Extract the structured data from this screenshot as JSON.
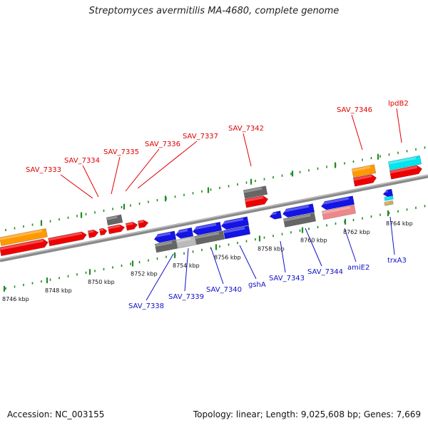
{
  "title": "Streptomyces avermitilis MA-4680, complete genome",
  "accession": "Accession: NC_003155",
  "stats": "Topology: linear; Length: 9,025,608 bp; Genes: 7,669",
  "colors": {
    "forward_gene": "#ee0000",
    "reverse_gene": "#1414e6",
    "orange_feature": "#ff9900",
    "cyan_feature": "#00e5ee",
    "gray_feature": "#666666",
    "pink_feature": "#ee8888",
    "backbone": "#8a8a8a",
    "tick": "#228b22",
    "forward_label": "#e00000",
    "reverse_label": "#1010c8"
  },
  "ticks": [
    "8746 kbp",
    "8748 kbp",
    "8750 kbp",
    "8752 kbp",
    "8754 kbp",
    "8756 kbp",
    "8758 kbp",
    "8760 kbp",
    "8762 kbp",
    "8764 kbp"
  ],
  "forward_genes": [
    "SAV_7333",
    "SAV_7334",
    "SAV_7335",
    "SAV_7336",
    "SAV_7337",
    "SAV_7342",
    "SAV_7346",
    "lpdB2"
  ],
  "reverse_genes": [
    "SAV_7338",
    "SAV_7339",
    "SAV_7340",
    "gshA",
    "SAV_7343",
    "SAV_7344",
    "amiE2",
    "trxA3"
  ]
}
